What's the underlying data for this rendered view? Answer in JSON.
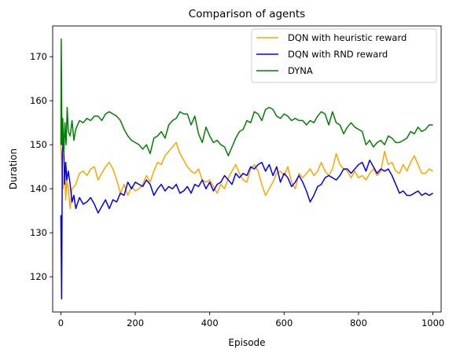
{
  "chart_data": {
    "type": "line",
    "title": "Comparison of agents",
    "xlabel": "Episode",
    "ylabel": "Duration",
    "xlim": [
      -22,
      1022
    ],
    "ylim": [
      112,
      177
    ],
    "xticks": [
      0,
      200,
      400,
      600,
      800,
      1000
    ],
    "yticks": [
      120,
      130,
      140,
      150,
      160,
      170
    ],
    "grid": false,
    "legend_position": "top-right",
    "series": [
      {
        "name": "DQN with heuristic reward",
        "color": "#ffa500",
        "x": [
          0,
          3,
          6,
          10,
          13,
          16,
          20,
          25,
          30,
          40,
          50,
          60,
          70,
          80,
          90,
          100,
          110,
          120,
          130,
          140,
          150,
          160,
          170,
          180,
          190,
          200,
          210,
          220,
          230,
          240,
          250,
          260,
          270,
          280,
          290,
          300,
          310,
          320,
          330,
          340,
          350,
          360,
          370,
          380,
          390,
          400,
          410,
          420,
          430,
          440,
          450,
          460,
          470,
          480,
          490,
          500,
          510,
          520,
          530,
          540,
          550,
          560,
          570,
          580,
          590,
          600,
          610,
          620,
          630,
          640,
          650,
          660,
          670,
          680,
          690,
          700,
          710,
          720,
          730,
          740,
          750,
          760,
          770,
          780,
          790,
          800,
          810,
          820,
          830,
          840,
          850,
          860,
          870,
          880,
          890,
          900,
          910,
          920,
          930,
          940,
          950,
          960,
          970,
          980,
          990,
          1000
        ],
        "values": [
          150,
          143,
          140,
          146,
          137.5,
          142,
          140,
          135.5,
          140,
          141,
          143.5,
          144,
          143,
          144.5,
          145,
          142,
          143.5,
          145,
          146,
          144.5,
          142,
          139,
          141,
          138.5,
          140.5,
          139.5,
          140,
          141,
          143,
          141.5,
          144,
          146,
          145.5,
          147.5,
          148.5,
          149.5,
          150.5,
          148,
          146.5,
          145,
          144,
          143.5,
          144.5,
          142,
          141.5,
          142,
          140.5,
          139,
          141,
          140,
          142.5,
          144,
          145.5,
          143.5,
          142,
          141.5,
          144.5,
          145.5,
          144,
          141,
          138.5,
          140,
          141.5,
          143.5,
          144,
          143,
          145,
          141.5,
          140,
          143.5,
          142.5,
          143.5,
          144.5,
          143,
          144,
          146,
          144,
          143,
          144.5,
          148,
          145.5,
          144.5,
          144,
          142.5,
          144,
          142.5,
          143,
          142,
          143.5,
          144.5,
          143,
          144,
          148.5,
          145.5,
          146,
          144,
          143.5,
          145.5,
          144,
          146,
          147.5,
          145.5,
          143.5,
          143.5,
          144.5,
          144
        ]
      },
      {
        "name": "DQN with RND reward",
        "color": "#0000ff",
        "x": [
          0,
          2,
          4,
          7,
          10,
          13,
          16,
          20,
          25,
          30,
          35,
          40,
          50,
          60,
          70,
          80,
          90,
          100,
          110,
          120,
          130,
          140,
          150,
          160,
          170,
          180,
          190,
          200,
          210,
          220,
          230,
          240,
          250,
          260,
          270,
          280,
          290,
          300,
          310,
          320,
          330,
          340,
          350,
          360,
          370,
          380,
          390,
          400,
          410,
          420,
          430,
          440,
          450,
          460,
          470,
          480,
          490,
          500,
          510,
          520,
          530,
          540,
          550,
          560,
          570,
          580,
          590,
          600,
          610,
          620,
          630,
          640,
          650,
          660,
          670,
          680,
          690,
          700,
          710,
          720,
          730,
          740,
          750,
          760,
          770,
          780,
          790,
          800,
          810,
          820,
          830,
          840,
          850,
          860,
          870,
          880,
          890,
          900,
          910,
          920,
          930,
          940,
          950,
          960,
          970,
          980,
          990,
          1000
        ],
        "values": [
          134,
          115,
          148,
          152,
          141,
          146,
          142,
          144,
          141,
          137,
          138.5,
          135.5,
          138,
          136.5,
          137,
          138,
          136.5,
          134.5,
          136,
          137.5,
          135.5,
          137.5,
          137,
          139,
          138.5,
          141.5,
          140,
          141.5,
          141,
          140.5,
          142,
          141,
          138.5,
          140,
          141,
          139.5,
          140.5,
          140,
          141,
          139,
          139.5,
          140.5,
          139,
          141,
          140.5,
          142,
          140,
          141.5,
          139.5,
          141,
          141.5,
          143,
          142,
          141,
          143.5,
          142.5,
          143.5,
          143,
          145,
          144.5,
          145.5,
          146,
          144,
          145.5,
          143,
          145,
          141.5,
          143.5,
          142.5,
          140.5,
          141.5,
          143,
          141.5,
          139.5,
          137,
          138.5,
          140.5,
          141,
          142.5,
          143,
          142.5,
          142,
          143,
          144.5,
          144.5,
          143.5,
          144.5,
          145.5,
          146,
          144,
          146.5,
          145,
          143.5,
          144.5,
          144,
          144.5,
          143,
          141,
          139,
          139.5,
          138.5,
          138.5,
          139,
          139.5,
          138.5,
          139,
          138.5,
          139
        ]
      },
      {
        "name": "DYNA",
        "color": "#008000",
        "x": [
          0,
          1,
          3,
          5,
          8,
          11,
          14,
          17,
          20,
          25,
          30,
          35,
          40,
          50,
          60,
          70,
          80,
          90,
          100,
          110,
          120,
          130,
          140,
          150,
          160,
          170,
          180,
          190,
          200,
          210,
          220,
          230,
          240,
          250,
          260,
          270,
          280,
          290,
          300,
          310,
          320,
          330,
          340,
          350,
          360,
          370,
          380,
          390,
          400,
          410,
          420,
          430,
          440,
          450,
          460,
          470,
          480,
          490,
          500,
          510,
          520,
          530,
          540,
          550,
          560,
          570,
          580,
          590,
          600,
          610,
          620,
          630,
          640,
          650,
          660,
          670,
          680,
          690,
          700,
          710,
          720,
          730,
          740,
          750,
          760,
          770,
          780,
          790,
          800,
          810,
          820,
          830,
          840,
          850,
          860,
          870,
          880,
          890,
          900,
          910,
          920,
          930,
          940,
          950,
          960,
          970,
          980,
          990,
          1000
        ],
        "values": [
          150,
          174,
          150,
          156,
          148,
          155,
          150,
          158.5,
          153,
          152,
          155.5,
          151,
          153.5,
          155.5,
          155,
          156,
          155.5,
          156.5,
          156.5,
          155.5,
          157,
          157.5,
          157,
          156.5,
          155.5,
          153.5,
          152,
          151,
          150.5,
          150,
          149,
          150,
          148,
          151.5,
          152,
          153,
          151.5,
          154.5,
          155.5,
          156,
          157.5,
          157,
          157,
          154.5,
          156.5,
          152.5,
          150.5,
          154,
          152,
          150.5,
          151,
          150,
          149.5,
          147.5,
          149.5,
          151.5,
          153,
          153.5,
          155.5,
          155,
          157.5,
          157,
          155.5,
          158,
          158.5,
          158,
          156.5,
          156,
          157,
          156.5,
          155.5,
          156,
          155.5,
          155.5,
          154.5,
          155.5,
          155,
          156.5,
          157.5,
          157,
          154.5,
          157.5,
          155,
          154.5,
          152.5,
          154,
          155,
          154,
          153.5,
          153,
          150,
          151,
          149.5,
          150.5,
          151,
          150,
          152,
          151.5,
          150.5,
          150.5,
          151,
          151.5,
          153,
          152.5,
          154,
          153,
          153.5,
          154.5,
          154.5
        ]
      }
    ]
  }
}
